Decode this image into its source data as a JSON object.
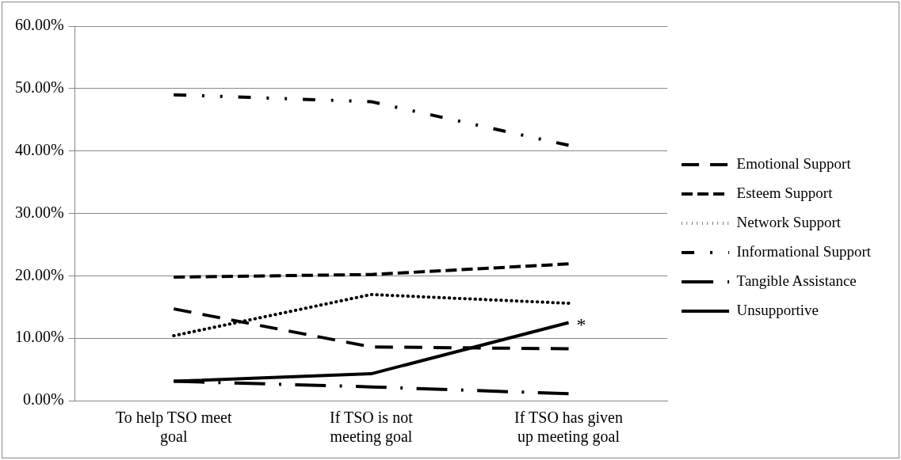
{
  "chart_data": {
    "type": "line",
    "categories": [
      "To help TSO meet goal",
      "If TSO is not meeting goal",
      "If TSO has given up meeting goal"
    ],
    "series": [
      {
        "name": "Emotional Support",
        "color": "#000000",
        "line_style": "dashed",
        "values": [
          14.7,
          8.6,
          8.3
        ]
      },
      {
        "name": "Esteem Support",
        "color": "#000000",
        "line_style": "dashed",
        "values": [
          19.8,
          20.2,
          21.9
        ]
      },
      {
        "name": "Network Support",
        "color": "#000000",
        "line_style": "dotted",
        "values": [
          10.4,
          17.0,
          15.6
        ]
      },
      {
        "name": "Informational Support",
        "color": "#000000",
        "line_style": "dashed",
        "values": [
          49.0,
          47.9,
          40.9
        ]
      },
      {
        "name": "Tangible Assistance",
        "color": "#000000",
        "line_style": "dashed",
        "values": [
          3.1,
          2.2,
          1.1
        ]
      },
      {
        "name": "Unsupportive",
        "color": "#000000",
        "line_style": "solid",
        "values": [
          3.1,
          4.3,
          12.5
        ]
      }
    ],
    "ylim": [
      0,
      60
    ],
    "yticks": [
      {
        "value": 0,
        "label": "0.00%"
      },
      {
        "value": 10,
        "label": "10.00%"
      },
      {
        "value": 20,
        "label": "20.00%"
      },
      {
        "value": 30,
        "label": "30.00%"
      },
      {
        "value": 40,
        "label": "40.00%"
      },
      {
        "value": 50,
        "label": "50.00%"
      },
      {
        "value": 60,
        "label": "60.00%"
      }
    ],
    "annotations": [
      {
        "text": "*",
        "x": "If TSO has given up meeting goal",
        "y": 12.5
      }
    ],
    "grid": "y",
    "legend": "right",
    "marker": "none"
  }
}
